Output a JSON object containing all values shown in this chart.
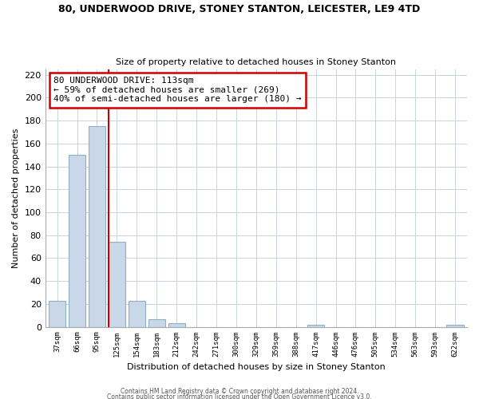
{
  "title1": "80, UNDERWOOD DRIVE, STONEY STANTON, LEICESTER, LE9 4TD",
  "title2": "Size of property relative to detached houses in Stoney Stanton",
  "xlabel": "Distribution of detached houses by size in Stoney Stanton",
  "ylabel": "Number of detached properties",
  "bar_labels": [
    "37sqm",
    "66sqm",
    "95sqm",
    "125sqm",
    "154sqm",
    "183sqm",
    "212sqm",
    "242sqm",
    "271sqm",
    "300sqm",
    "329sqm",
    "359sqm",
    "388sqm",
    "417sqm",
    "446sqm",
    "476sqm",
    "505sqm",
    "534sqm",
    "563sqm",
    "593sqm",
    "622sqm"
  ],
  "bar_values": [
    23,
    150,
    175,
    74,
    23,
    7,
    3,
    0,
    0,
    0,
    0,
    0,
    0,
    2,
    0,
    0,
    0,
    0,
    0,
    0,
    2
  ],
  "bar_color": "#c8d8e8",
  "bar_edge_color": "#90aec8",
  "annotation_title": "80 UNDERWOOD DRIVE: 113sqm",
  "annotation_line1": "← 59% of detached houses are smaller (269)",
  "annotation_line2": "40% of semi-detached houses are larger (180) →",
  "annotation_box_color": "#ffffff",
  "annotation_box_edge": "#cc0000",
  "vline_color": "#cc0000",
  "vline_x": 2.6,
  "ylim": [
    0,
    225
  ],
  "yticks": [
    0,
    20,
    40,
    60,
    80,
    100,
    120,
    140,
    160,
    180,
    200,
    220
  ],
  "footer1": "Contains HM Land Registry data © Crown copyright and database right 2024.",
  "footer2": "Contains public sector information licensed under the Open Government Licence v3.0.",
  "bg_color": "#ffffff",
  "grid_color": "#c8d4e0"
}
